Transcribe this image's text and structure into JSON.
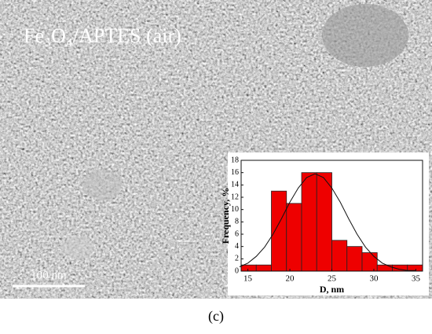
{
  "image": {
    "label": "Fe₃O₄/APTES (air)",
    "scale_bar": "100 nm"
  },
  "caption": "(c)",
  "chart_data": {
    "type": "histogram",
    "x_label": "D, nm",
    "y_label": "Frequency, %",
    "bins": [
      14.2,
      16,
      17.8,
      19.6,
      21.4,
      23.2,
      25,
      26.8,
      28.6,
      30.4,
      32.2,
      34,
      35.8
    ],
    "values": [
      1,
      1,
      13,
      11,
      16,
      16,
      5,
      4,
      3,
      1,
      1,
      1
    ],
    "color": "#ee0000",
    "fit": {
      "x": [
        14,
        15,
        16,
        17,
        18,
        19,
        20,
        21,
        22,
        23,
        24,
        25,
        26,
        27,
        28,
        29,
        30,
        31,
        32,
        33,
        34,
        35
      ],
      "y": [
        0.7,
        1.3,
        2.4,
        3.9,
        6.0,
        8.5,
        11.2,
        13.5,
        15.2,
        15.8,
        15.2,
        13.5,
        11.2,
        8.5,
        6.0,
        3.9,
        2.4,
        1.3,
        0.7,
        0.3,
        0.1,
        0.1
      ]
    },
    "xlim": [
      14.2,
      35.8
    ],
    "xticks": [
      15,
      20,
      25,
      30,
      35
    ],
    "ylim": [
      0,
      18
    ],
    "yticks": [
      0,
      2,
      4,
      6,
      8,
      10,
      12,
      14,
      16,
      18
    ]
  }
}
